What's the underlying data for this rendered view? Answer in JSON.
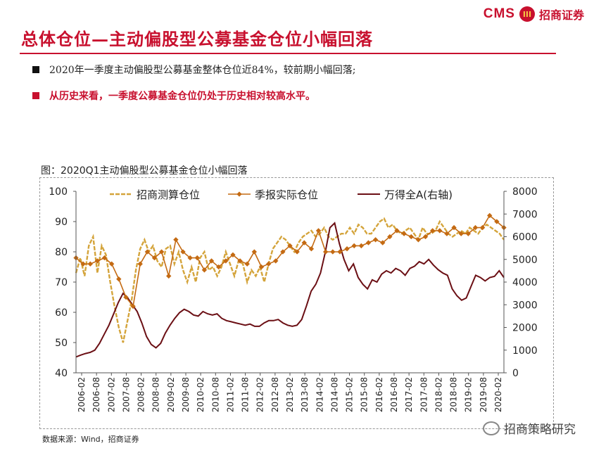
{
  "brand": {
    "cms": "CMS",
    "mark": "III",
    "name": "招商证券"
  },
  "header": {
    "title": "总体仓位—主动偏股型公募基金仓位小幅回落"
  },
  "bullets": [
    "2020年一季度主动偏股型公募基金整体仓位近84%，较前期小幅回落;",
    "从历史来看，一季度公募基金仓位仍处于历史相对较高水平。"
  ],
  "figure": {
    "title": "图：2020Q1主动偏股型公募基金仓位小幅回落"
  },
  "source": "数据来源：Wind，招商证券",
  "watermark": "招商策略研究",
  "colors": {
    "estimate": "#d4a43b",
    "quarterly": "#c46a12",
    "index": "#6b0f14",
    "accent": "#c8102e"
  },
  "chart_data": {
    "type": "line",
    "x_labels": [
      "2006-02",
      "2006-08",
      "2007-02",
      "2007-08",
      "2008-02",
      "2008-08",
      "2009-02",
      "2009-08",
      "2010-02",
      "2010-08",
      "2011-02",
      "2011-08",
      "2012-02",
      "2012-08",
      "2013-02",
      "2013-08",
      "2014-02",
      "2014-08",
      "2015-02",
      "2015-08",
      "2016-02",
      "2016-08",
      "2017-02",
      "2017-08",
      "2018-02",
      "2018-08",
      "2019-02",
      "2019-08",
      "2020-02"
    ],
    "ylim_left": [
      40,
      100
    ],
    "yticks_left": [
      40,
      50,
      60,
      70,
      80,
      90,
      100
    ],
    "ylim_right": [
      0,
      8000
    ],
    "yticks_right": [
      0,
      1000,
      2000,
      3000,
      4000,
      5000,
      6000,
      7000,
      8000
    ],
    "legend": [
      "招商测算仓位",
      "季报实际仓位",
      "万得全A(右轴)"
    ],
    "series": [
      {
        "name": "季报实际仓位",
        "axis": "left",
        "values": [
          78,
          76,
          76,
          77,
          78,
          76,
          71,
          65,
          62,
          76,
          80,
          78,
          80,
          72,
          84,
          80,
          78,
          78,
          74,
          77,
          75,
          77,
          79,
          77,
          76,
          80,
          75,
          76,
          77,
          80,
          82,
          80,
          83,
          81,
          87,
          80,
          80,
          80,
          81,
          82,
          82,
          83,
          84,
          83,
          85,
          87,
          86,
          85,
          84,
          85,
          87,
          87,
          86,
          88,
          86,
          86,
          88,
          88,
          92,
          90,
          88
        ]
      },
      {
        "name": "招商测算仓位",
        "axis": "left",
        "values": [
          73,
          78,
          72,
          82,
          85,
          73,
          82,
          79,
          70,
          62,
          55,
          50,
          57,
          64,
          74,
          81,
          84,
          80,
          82,
          77,
          75,
          81,
          82,
          76,
          80,
          74,
          70,
          75,
          70,
          78,
          80,
          74,
          75,
          72,
          75,
          80,
          76,
          72,
          77,
          76,
          70,
          74,
          72,
          75,
          70,
          76,
          81,
          83,
          85,
          84,
          82,
          80,
          83,
          85,
          86,
          87,
          85,
          86,
          88,
          85,
          84,
          85,
          86,
          86,
          88,
          86,
          89,
          88,
          86,
          86,
          88,
          90,
          91,
          88,
          89,
          87,
          86,
          87,
          88,
          86,
          84,
          88,
          86,
          86,
          87,
          90,
          88,
          86,
          85,
          86,
          87,
          86,
          88,
          87,
          86,
          88,
          89,
          88,
          87,
          86,
          84
        ]
      },
      {
        "name": "万得全A(右轴)",
        "axis": "right",
        "values": [
          700,
          780,
          850,
          900,
          1000,
          1300,
          1700,
          2100,
          2600,
          3100,
          3500,
          3300,
          3000,
          2700,
          2200,
          1600,
          1250,
          1100,
          1300,
          1750,
          2100,
          2400,
          2650,
          2800,
          2700,
          2550,
          2500,
          2700,
          2600,
          2550,
          2600,
          2400,
          2300,
          2250,
          2200,
          2150,
          2100,
          2150,
          2050,
          2050,
          2200,
          2300,
          2300,
          2350,
          2200,
          2100,
          2050,
          2100,
          2350,
          2950,
          3600,
          3900,
          4400,
          5300,
          6400,
          6600,
          5700,
          5000,
          4500,
          4800,
          4200,
          3900,
          3700,
          4100,
          4000,
          4350,
          4500,
          4400,
          4600,
          4500,
          4300,
          4600,
          4700,
          4900,
          4800,
          5000,
          4750,
          4550,
          4400,
          4300,
          3700,
          3400,
          3200,
          3300,
          3800,
          4300,
          4200,
          4050,
          4200,
          4250,
          4500,
          4200
        ]
      }
    ]
  }
}
